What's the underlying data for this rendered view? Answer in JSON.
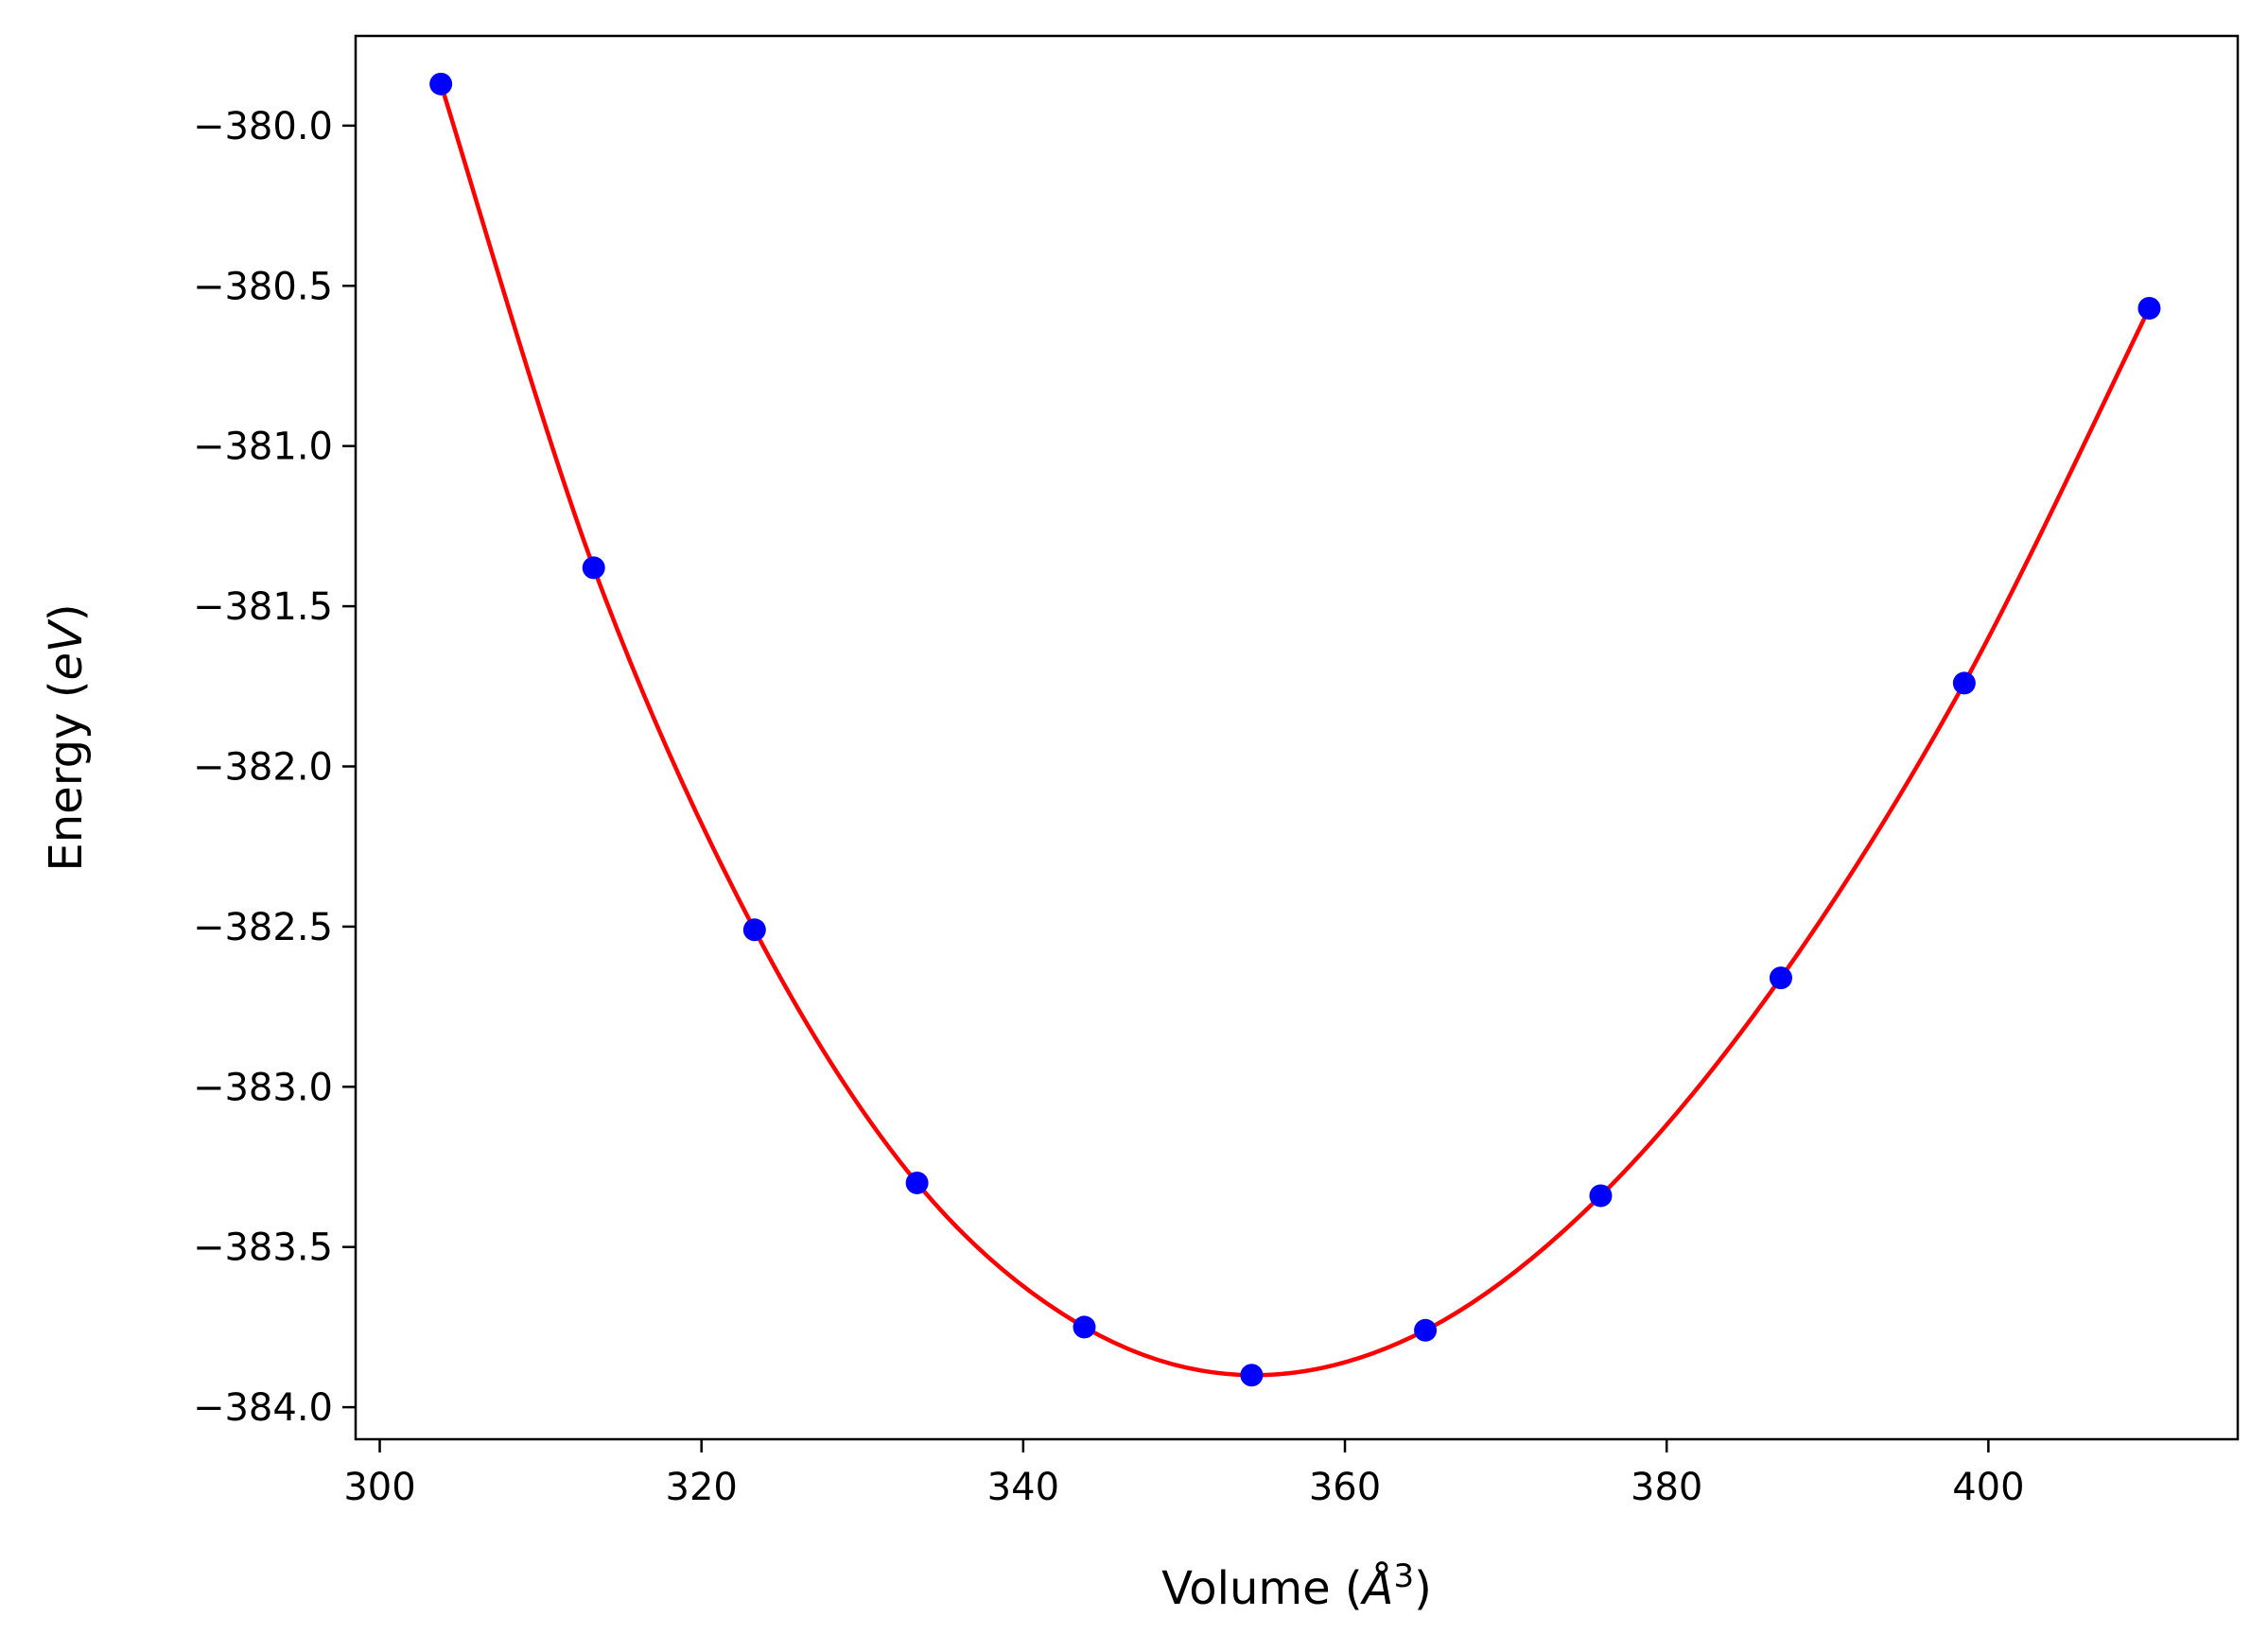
{
  "chart_data": {
    "type": "scatter",
    "title": "",
    "xlabel": "Volume",
    "ylabel": "Energy",
    "xlabel_unit": "Å",
    "xlabel_unit_exp": "3",
    "ylabel_unit": "eV",
    "xlim": [
      298.5,
      415.5
    ],
    "ylim": [
      -384.1,
      -379.72
    ],
    "x_ticks": [
      300,
      320,
      340,
      360,
      380,
      400
    ],
    "y_ticks": [
      -380.0,
      -380.5,
      -381.0,
      -381.5,
      -382.0,
      -382.5,
      -383.0,
      -383.5,
      -384.0
    ],
    "x_tick_labels": [
      "300",
      "320",
      "340",
      "360",
      "380",
      "400"
    ],
    "y_tick_labels": [
      "−380.0",
      "−380.5",
      "−381.0",
      "−381.5",
      "−382.0",
      "−382.5",
      "−383.0",
      "−383.5",
      "−384.0"
    ],
    "grid": false,
    "series": [
      {
        "kind": "points",
        "color": "#0000ff",
        "x": [
          303.8,
          313.3,
          323.3,
          333.4,
          343.8,
          354.2,
          365.0,
          375.9,
          387.1,
          398.5,
          410.0
        ],
        "y": [
          -379.87,
          -381.38,
          -382.51,
          -383.3,
          -383.75,
          -383.9,
          -383.76,
          -383.34,
          -382.66,
          -381.74,
          -380.57
        ]
      },
      {
        "kind": "fit-curve",
        "color": "#ff0000",
        "x": [
          303.8,
          313.3,
          323.3,
          333.4,
          343.8,
          354.2,
          365.0,
          375.9,
          387.1,
          398.5,
          410.0
        ],
        "y": [
          -379.87,
          -381.38,
          -382.51,
          -383.3,
          -383.75,
          -383.9,
          -383.76,
          -383.34,
          -382.66,
          -381.74,
          -380.57
        ]
      }
    ]
  }
}
